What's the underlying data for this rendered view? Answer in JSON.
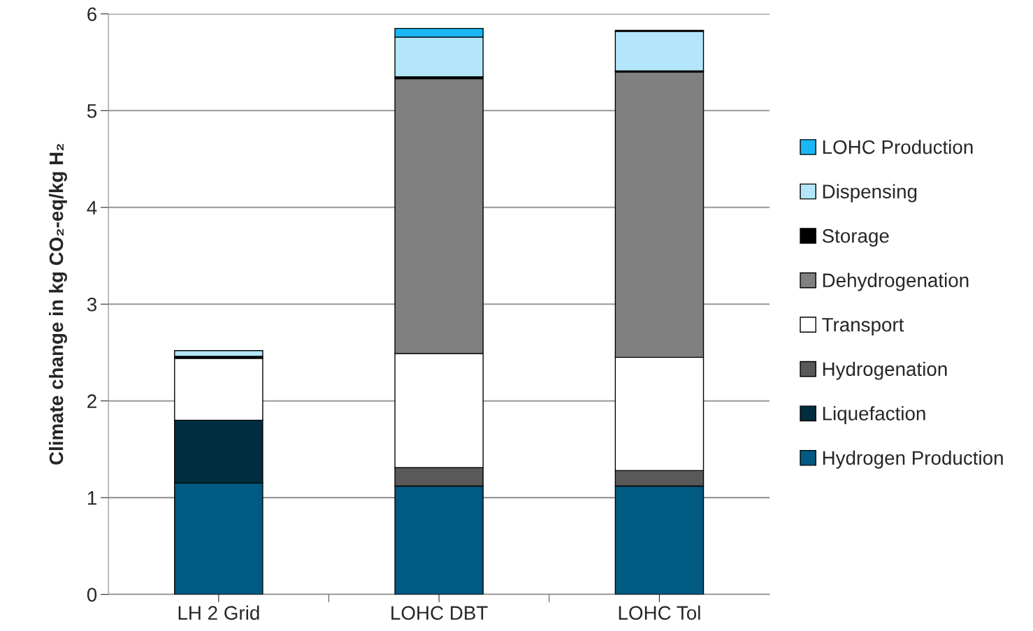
{
  "chart_data": {
    "type": "bar",
    "stacked": true,
    "ylabel": "Climate change in kg CO₂-eq/kg H₂",
    "categories": [
      "LH 2 Grid",
      "LOHC DBT",
      "LOHC Tol"
    ],
    "series": [
      {
        "name": "Hydrogen Production",
        "color": "#005a82",
        "values": [
          1.15,
          1.12,
          1.12
        ]
      },
      {
        "name": "Liquefaction",
        "color": "#002e40",
        "values": [
          0.65,
          null,
          null
        ]
      },
      {
        "name": "Hydrogenation",
        "color": "#595959",
        "values": [
          null,
          0.19,
          0.16
        ]
      },
      {
        "name": "Transport",
        "color": "#ffffff",
        "values": [
          0.64,
          1.18,
          1.17
        ]
      },
      {
        "name": "Dehydrogenation",
        "color": "#808080",
        "values": [
          null,
          2.84,
          2.95
        ]
      },
      {
        "name": "Storage",
        "color": "#000000",
        "values": [
          0.02,
          0.02,
          0.01
        ]
      },
      {
        "name": "Dispensing",
        "color": "#b3e6fa",
        "values": [
          0.06,
          0.41,
          0.41
        ]
      },
      {
        "name": "LOHC Production",
        "color": "#1ab7f5",
        "values": [
          null,
          0.09,
          0.01
        ]
      }
    ],
    "ylim": [
      0,
      6
    ],
    "yticks": [
      0,
      1,
      2,
      3,
      4,
      5,
      6
    ],
    "grid": "y",
    "legend": "right"
  }
}
